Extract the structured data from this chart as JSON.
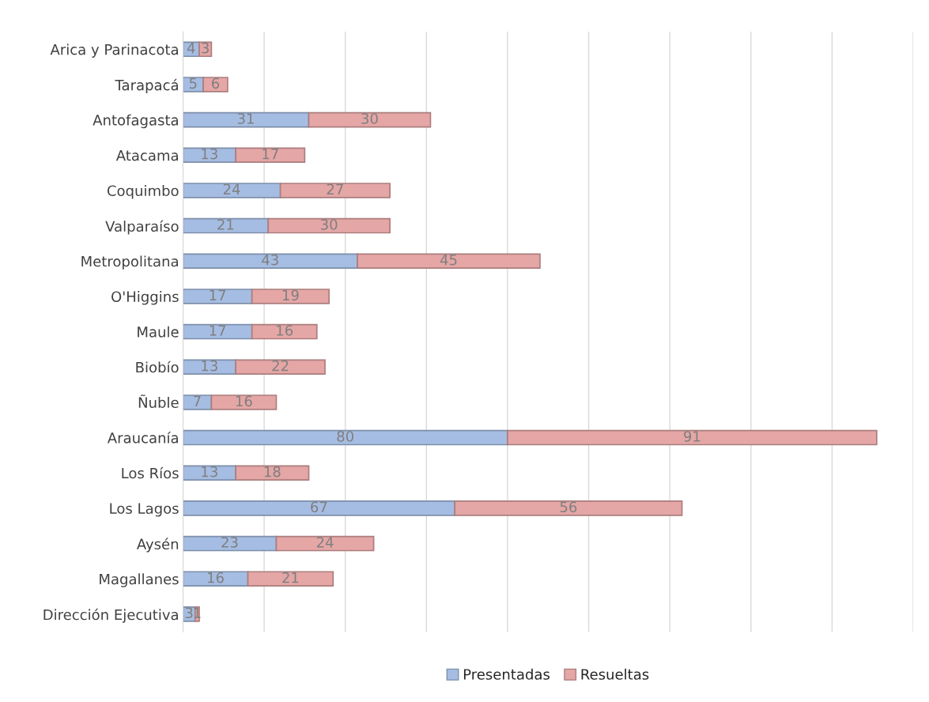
{
  "chart_data": {
    "type": "bar",
    "orientation": "horizontal",
    "stacked": true,
    "categories": [
      "Arica y Parinacota",
      "Tarapacá",
      "Antofagasta",
      "Atacama",
      "Coquimbo",
      "Valparaíso",
      "Metropolitana",
      "O'Higgins",
      "Maule",
      "Biobío",
      "Ñuble",
      "Araucanía",
      "Los Ríos",
      "Los Lagos",
      "Aysén",
      "Magallanes",
      "Dirección Ejecutiva"
    ],
    "series": [
      {
        "name": "Presentadas",
        "color": "#a6bde3",
        "values": [
          4,
          5,
          31,
          13,
          24,
          21,
          43,
          17,
          17,
          13,
          7,
          80,
          13,
          67,
          23,
          16,
          3
        ]
      },
      {
        "name": "Resueltas",
        "color": "#e5a6a6",
        "values": [
          3,
          6,
          30,
          17,
          27,
          30,
          45,
          19,
          16,
          22,
          16,
          91,
          18,
          56,
          24,
          21,
          1
        ]
      }
    ],
    "xlim": [
      0,
      180
    ],
    "xticks": [
      {
        "value": 0,
        "label": null
      },
      {
        "value": 20,
        "label": null
      },
      {
        "value": 40,
        "label": null
      },
      {
        "value": 60,
        "label": null
      },
      {
        "value": 80,
        "label": null
      },
      {
        "value": 100,
        "label": null
      },
      {
        "value": 120,
        "label": null
      },
      {
        "value": 140,
        "label": null
      },
      {
        "value": 160,
        "label": null
      },
      {
        "value": 180,
        "label": null
      }
    ],
    "tick_labels": "y",
    "grid": "x",
    "legend": "bottom",
    "data_labels": true
  }
}
